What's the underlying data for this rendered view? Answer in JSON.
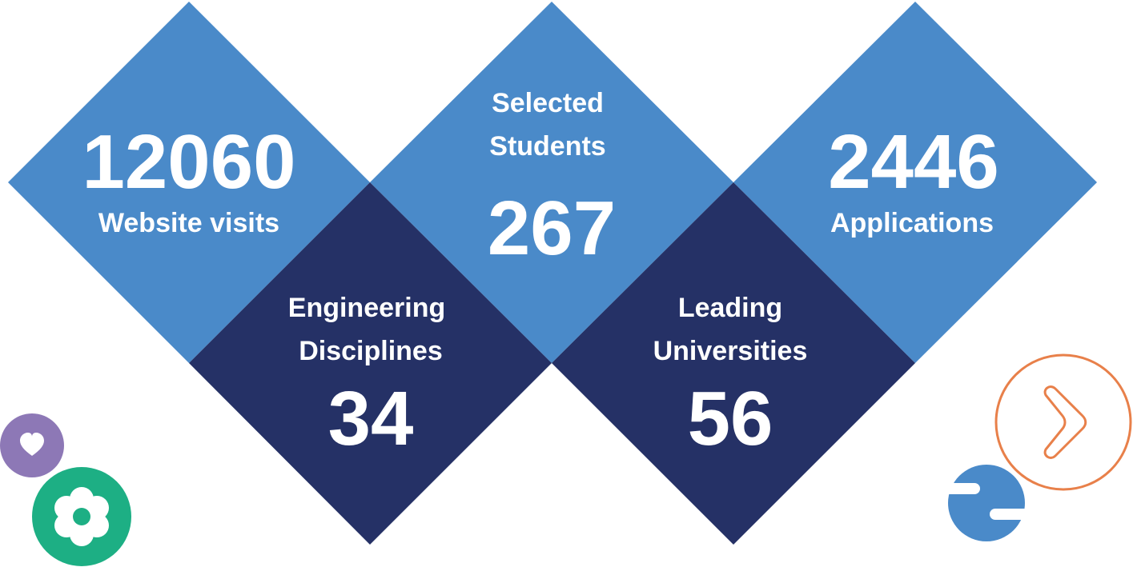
{
  "colors": {
    "light_diamond": "#4a8ac9",
    "dark_diamond": "#253166",
    "text": "#ffffff",
    "heart_badge": "#8d78b6",
    "flower_badge": "#1daf84",
    "next_ring": "#e8804a",
    "blue_blob": "#4a8ac9"
  },
  "stats": {
    "website_visits": {
      "value": "12060",
      "label": "Website visits"
    },
    "selected_students": {
      "label_line1": "Selected",
      "label_line2": "Students",
      "value": "267"
    },
    "applications": {
      "value": "2446",
      "label": "Applications"
    },
    "engineering_disciplines": {
      "label_line1": "Engineering",
      "label_line2": "Disciplines",
      "value": "34"
    },
    "leading_universities": {
      "label_line1": "Leading",
      "label_line2": "Universities",
      "value": "56"
    }
  },
  "icons": {
    "heart": "heart-icon",
    "flower": "flower-icon",
    "next": "chevron-right-icon",
    "blob": "blob-decoration"
  }
}
